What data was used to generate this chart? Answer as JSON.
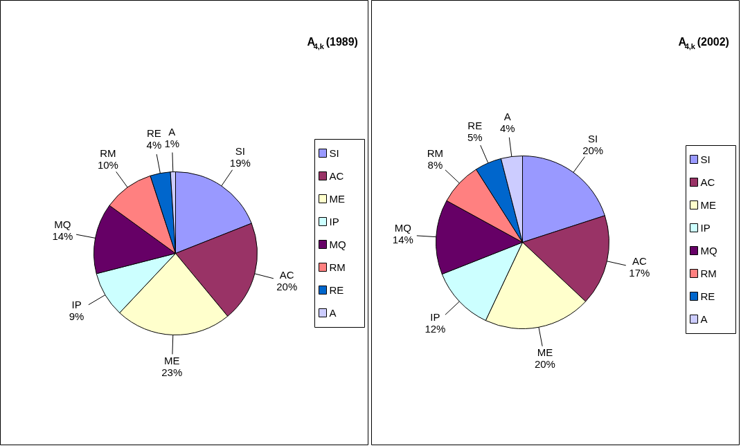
{
  "chart_data": [
    {
      "type": "pie",
      "title": "A$_{4,k}$(1989)",
      "categories": [
        "SI",
        "AC",
        "ME",
        "IP",
        "MQ",
        "RM",
        "RE",
        "A"
      ],
      "values": [
        19,
        20,
        23,
        9,
        14,
        10,
        4,
        1
      ],
      "value_labels": [
        "19%",
        "20%",
        "23%",
        "9%",
        "14%",
        "10%",
        "4%",
        "1%"
      ],
      "colors": [
        "#9999ff",
        "#993366",
        "#ffffcc",
        "#ccffff",
        "#660066",
        "#ff8080",
        "#0066cc",
        "#ccccff"
      ],
      "legend": "right"
    },
    {
      "type": "pie",
      "title": "A$_{4,k}$(2002)",
      "categories": [
        "SI",
        "AC",
        "ME",
        "IP",
        "MQ",
        "RM",
        "RE",
        "A"
      ],
      "values": [
        20,
        17,
        20,
        12,
        14,
        8,
        5,
        4
      ],
      "value_labels": [
        "20%",
        "17%",
        "20%",
        "12%",
        "14%",
        "8%",
        "5%",
        "4%"
      ],
      "colors": [
        "#9999ff",
        "#993366",
        "#ffffcc",
        "#ccffff",
        "#660066",
        "#ff8080",
        "#0066cc",
        "#ccccff"
      ],
      "legend": "right"
    }
  ]
}
